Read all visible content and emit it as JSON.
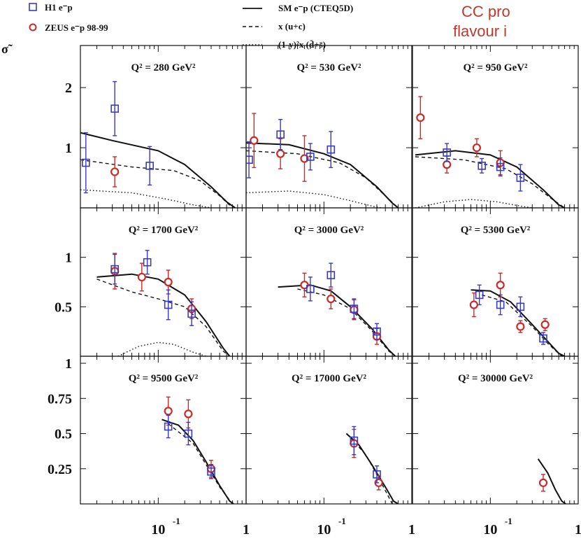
{
  "header": {
    "cropped_text": [
      "CC pro",
      "flavour i"
    ],
    "corner_symbol": "σ̃",
    "color": "#c0392b"
  },
  "legend": {
    "h1": "H1 e⁻p",
    "zeus": "ZEUS e⁻p 98-99",
    "sm": "SM e⁻p (CTEQ5D)",
    "uc": "x (u+c)",
    "dsbar": "(1-y)²x (d̄+s̄)"
  },
  "chart_data": {
    "type": "scatter",
    "x_scale": "log",
    "xlim": [
      0.013,
      1.0
    ],
    "x_ticks": [
      {
        "value": 0.1,
        "base": "10",
        "exp": "-1"
      },
      {
        "value": 1,
        "base": "1",
        "exp": ""
      }
    ],
    "colors": {
      "h1": "#3a3ac0",
      "zeus": "#cc2a2a",
      "curve": "#111111"
    },
    "rows": [
      {
        "ylim": [
          0,
          2.7
        ],
        "yticks": [
          {
            "value": 1,
            "label": "1"
          },
          {
            "value": 2,
            "label": "2"
          }
        ]
      },
      {
        "ylim": [
          0,
          1.5
        ],
        "yticks": [
          {
            "value": 0.5,
            "label": "0.5"
          },
          {
            "value": 1,
            "label": "1"
          }
        ]
      },
      {
        "ylim": [
          0,
          1.05
        ],
        "yticks": [
          {
            "value": 0.25,
            "label": "0.25"
          },
          {
            "value": 0.5,
            "label": "0.5"
          },
          {
            "value": 0.75,
            "label": "0.75"
          },
          {
            "value": 1,
            "label": "1"
          }
        ]
      }
    ],
    "panels": [
      {
        "label": "Q² = 280 GeV²",
        "q2": "280",
        "h1": [
          [
            0.015,
            0.75,
            0.5
          ],
          [
            0.032,
            1.65,
            0.45
          ],
          [
            0.08,
            0.7,
            0.32
          ]
        ],
        "zeus": [
          [
            0.032,
            0.6,
            0.25
          ]
        ],
        "sm": [
          [
            0.013,
            1.25
          ],
          [
            0.03,
            1.12
          ],
          [
            0.1,
            0.95
          ],
          [
            0.2,
            0.72
          ],
          [
            0.4,
            0.35
          ],
          [
            0.6,
            0.1
          ],
          [
            0.75,
            0.0
          ]
        ],
        "uc": [
          [
            0.013,
            0.8
          ],
          [
            0.05,
            0.68
          ],
          [
            0.15,
            0.62
          ],
          [
            0.3,
            0.45
          ],
          [
            0.5,
            0.2
          ],
          [
            0.7,
            0.0
          ]
        ],
        "dsbar": [
          [
            0.013,
            0.3
          ],
          [
            0.05,
            0.25
          ],
          [
            0.12,
            0.15
          ],
          [
            0.25,
            0.05
          ],
          [
            0.4,
            0.0
          ]
        ]
      },
      {
        "label": "Q² = 530 GeV²",
        "q2": "530",
        "h1": [
          [
            0.014,
            0.8,
            0.3
          ],
          [
            0.032,
            1.22,
            0.25
          ],
          [
            0.07,
            0.85,
            0.22
          ],
          [
            0.12,
            0.97,
            0.3
          ]
        ],
        "zeus": [
          [
            0.016,
            1.12,
            0.45
          ],
          [
            0.032,
            0.9,
            0.25
          ],
          [
            0.06,
            0.82,
            0.38
          ]
        ],
        "sm": [
          [
            0.013,
            1.08
          ],
          [
            0.04,
            1.05
          ],
          [
            0.1,
            0.9
          ],
          [
            0.2,
            0.72
          ],
          [
            0.4,
            0.35
          ],
          [
            0.6,
            0.08
          ],
          [
            0.7,
            0.0
          ]
        ],
        "uc": [
          [
            0.013,
            0.95
          ],
          [
            0.05,
            0.9
          ],
          [
            0.15,
            0.75
          ],
          [
            0.3,
            0.5
          ],
          [
            0.5,
            0.2
          ],
          [
            0.7,
            0.0
          ]
        ],
        "dsbar": [
          [
            0.013,
            0.25
          ],
          [
            0.04,
            0.28
          ],
          [
            0.1,
            0.22
          ],
          [
            0.2,
            0.12
          ],
          [
            0.35,
            0.03
          ],
          [
            0.45,
            0.0
          ]
        ]
      },
      {
        "label": "Q² = 950 GeV²",
        "q2": "950",
        "h1": [
          [
            0.032,
            0.92,
            0.15
          ],
          [
            0.08,
            0.7,
            0.12
          ],
          [
            0.13,
            0.68,
            0.15
          ],
          [
            0.22,
            0.5,
            0.22
          ]
        ],
        "zeus": [
          [
            0.016,
            1.5,
            0.35
          ],
          [
            0.032,
            0.72,
            0.14
          ],
          [
            0.07,
            1.0,
            0.15
          ],
          [
            0.13,
            0.75,
            0.2
          ]
        ],
        "sm": [
          [
            0.014,
            0.88
          ],
          [
            0.04,
            0.95
          ],
          [
            0.1,
            0.88
          ],
          [
            0.2,
            0.68
          ],
          [
            0.4,
            0.3
          ],
          [
            0.6,
            0.05
          ],
          [
            0.7,
            0.0
          ]
        ],
        "uc": [
          [
            0.014,
            0.85
          ],
          [
            0.05,
            0.8
          ],
          [
            0.15,
            0.65
          ],
          [
            0.3,
            0.4
          ],
          [
            0.5,
            0.15
          ],
          [
            0.7,
            0.0
          ]
        ],
        "dsbar": [
          [
            0.014,
            0.0
          ],
          [
            0.03,
            0.1
          ],
          [
            0.06,
            0.14
          ],
          [
            0.12,
            0.1
          ],
          [
            0.2,
            0.04
          ],
          [
            0.3,
            0.0
          ]
        ]
      },
      {
        "label": "Q² = 1700 GeV²",
        "q2": "1700",
        "h1": [
          [
            0.032,
            0.88,
            0.15
          ],
          [
            0.075,
            0.95,
            0.12
          ],
          [
            0.13,
            0.52,
            0.15
          ],
          [
            0.24,
            0.43,
            0.12
          ]
        ],
        "zeus": [
          [
            0.032,
            0.86,
            0.18
          ],
          [
            0.065,
            0.8,
            0.14
          ],
          [
            0.13,
            0.75,
            0.12
          ],
          [
            0.24,
            0.48,
            0.1
          ]
        ],
        "sm": [
          [
            0.02,
            0.8
          ],
          [
            0.05,
            0.83
          ],
          [
            0.1,
            0.78
          ],
          [
            0.2,
            0.62
          ],
          [
            0.35,
            0.35
          ],
          [
            0.55,
            0.08
          ],
          [
            0.65,
            0.0
          ]
        ],
        "uc": [
          [
            0.02,
            0.78
          ],
          [
            0.05,
            0.65
          ],
          [
            0.1,
            0.58
          ],
          [
            0.2,
            0.5
          ],
          [
            0.35,
            0.3
          ],
          [
            0.55,
            0.05
          ],
          [
            0.65,
            0.0
          ]
        ],
        "dsbar": [
          [
            0.035,
            0.0
          ],
          [
            0.06,
            0.1
          ],
          [
            0.1,
            0.14
          ],
          [
            0.15,
            0.12
          ],
          [
            0.25,
            0.04
          ],
          [
            0.35,
            0.0
          ]
        ]
      },
      {
        "label": "Q² = 3000 GeV²",
        "q2": "3000",
        "h1": [
          [
            0.07,
            0.68,
            0.12
          ],
          [
            0.12,
            0.82,
            0.12
          ],
          [
            0.22,
            0.48,
            0.1
          ],
          [
            0.4,
            0.25,
            0.08
          ]
        ],
        "zeus": [
          [
            0.06,
            0.72,
            0.12
          ],
          [
            0.12,
            0.58,
            0.1
          ],
          [
            0.22,
            0.47,
            0.1
          ],
          [
            0.4,
            0.2,
            0.08
          ]
        ],
        "sm": [
          [
            0.03,
            0.7
          ],
          [
            0.07,
            0.72
          ],
          [
            0.12,
            0.66
          ],
          [
            0.2,
            0.5
          ],
          [
            0.35,
            0.28
          ],
          [
            0.55,
            0.06
          ],
          [
            0.65,
            0.0
          ]
        ],
        "uc": [
          [
            0.05,
            0.68
          ],
          [
            0.1,
            0.62
          ],
          [
            0.2,
            0.48
          ],
          [
            0.35,
            0.26
          ],
          [
            0.55,
            0.05
          ],
          [
            0.65,
            0.0
          ]
        ],
        "dsbar": []
      },
      {
        "label": "Q² = 5300 GeV²",
        "q2": "5300",
        "h1": [
          [
            0.075,
            0.62,
            0.1
          ],
          [
            0.13,
            0.52,
            0.1
          ],
          [
            0.22,
            0.5,
            0.1
          ],
          [
            0.4,
            0.18,
            0.06
          ]
        ],
        "zeus": [
          [
            0.065,
            0.52,
            0.12
          ],
          [
            0.13,
            0.72,
            0.12
          ],
          [
            0.22,
            0.3,
            0.06
          ],
          [
            0.42,
            0.32,
            0.06
          ]
        ],
        "sm": [
          [
            0.06,
            0.67
          ],
          [
            0.1,
            0.66
          ],
          [
            0.17,
            0.55
          ],
          [
            0.3,
            0.32
          ],
          [
            0.45,
            0.15
          ],
          [
            0.6,
            0.03
          ],
          [
            0.7,
            0.0
          ]
        ],
        "uc": [
          [
            0.08,
            0.62
          ],
          [
            0.15,
            0.55
          ],
          [
            0.3,
            0.3
          ],
          [
            0.45,
            0.13
          ],
          [
            0.65,
            0.0
          ]
        ],
        "dsbar": []
      },
      {
        "label": "Q² = 9500 GeV²",
        "q2": "9500",
        "h1": [
          [
            0.13,
            0.55,
            0.08
          ],
          [
            0.22,
            0.5,
            0.08
          ],
          [
            0.4,
            0.23,
            0.05
          ]
        ],
        "zeus": [
          [
            0.13,
            0.66,
            0.1
          ],
          [
            0.22,
            0.64,
            0.1
          ],
          [
            0.4,
            0.25,
            0.06
          ]
        ],
        "sm": [
          [
            0.11,
            0.6
          ],
          [
            0.17,
            0.56
          ],
          [
            0.25,
            0.45
          ],
          [
            0.35,
            0.3
          ],
          [
            0.5,
            0.13
          ],
          [
            0.65,
            0.02
          ],
          [
            0.72,
            0.0
          ]
        ],
        "uc": [
          [
            0.13,
            0.57
          ],
          [
            0.25,
            0.43
          ],
          [
            0.35,
            0.28
          ],
          [
            0.5,
            0.12
          ],
          [
            0.7,
            0.0
          ]
        ],
        "dsbar": []
      },
      {
        "label": "Q² = 17000 GeV²",
        "q2": "17000",
        "h1": [
          [
            0.22,
            0.45,
            0.1
          ],
          [
            0.4,
            0.21,
            0.06
          ]
        ],
        "zeus": [
          [
            0.22,
            0.43,
            0.1
          ],
          [
            0.42,
            0.15,
            0.05
          ]
        ],
        "sm": [
          [
            0.18,
            0.5
          ],
          [
            0.25,
            0.42
          ],
          [
            0.35,
            0.28
          ],
          [
            0.5,
            0.12
          ],
          [
            0.62,
            0.02
          ],
          [
            0.7,
            0.0
          ]
        ],
        "uc": [
          [
            0.2,
            0.47
          ],
          [
            0.3,
            0.35
          ],
          [
            0.45,
            0.15
          ],
          [
            0.6,
            0.0
          ]
        ],
        "dsbar": []
      },
      {
        "label": "Q² = 30000 GeV²",
        "q2": "30000",
        "h1": [],
        "zeus": [
          [
            0.4,
            0.15,
            0.06
          ]
        ],
        "sm": [
          [
            0.35,
            0.32
          ],
          [
            0.45,
            0.22
          ],
          [
            0.55,
            0.1
          ],
          [
            0.65,
            0.02
          ],
          [
            0.72,
            0.0
          ]
        ],
        "uc": [],
        "dsbar": []
      }
    ]
  }
}
